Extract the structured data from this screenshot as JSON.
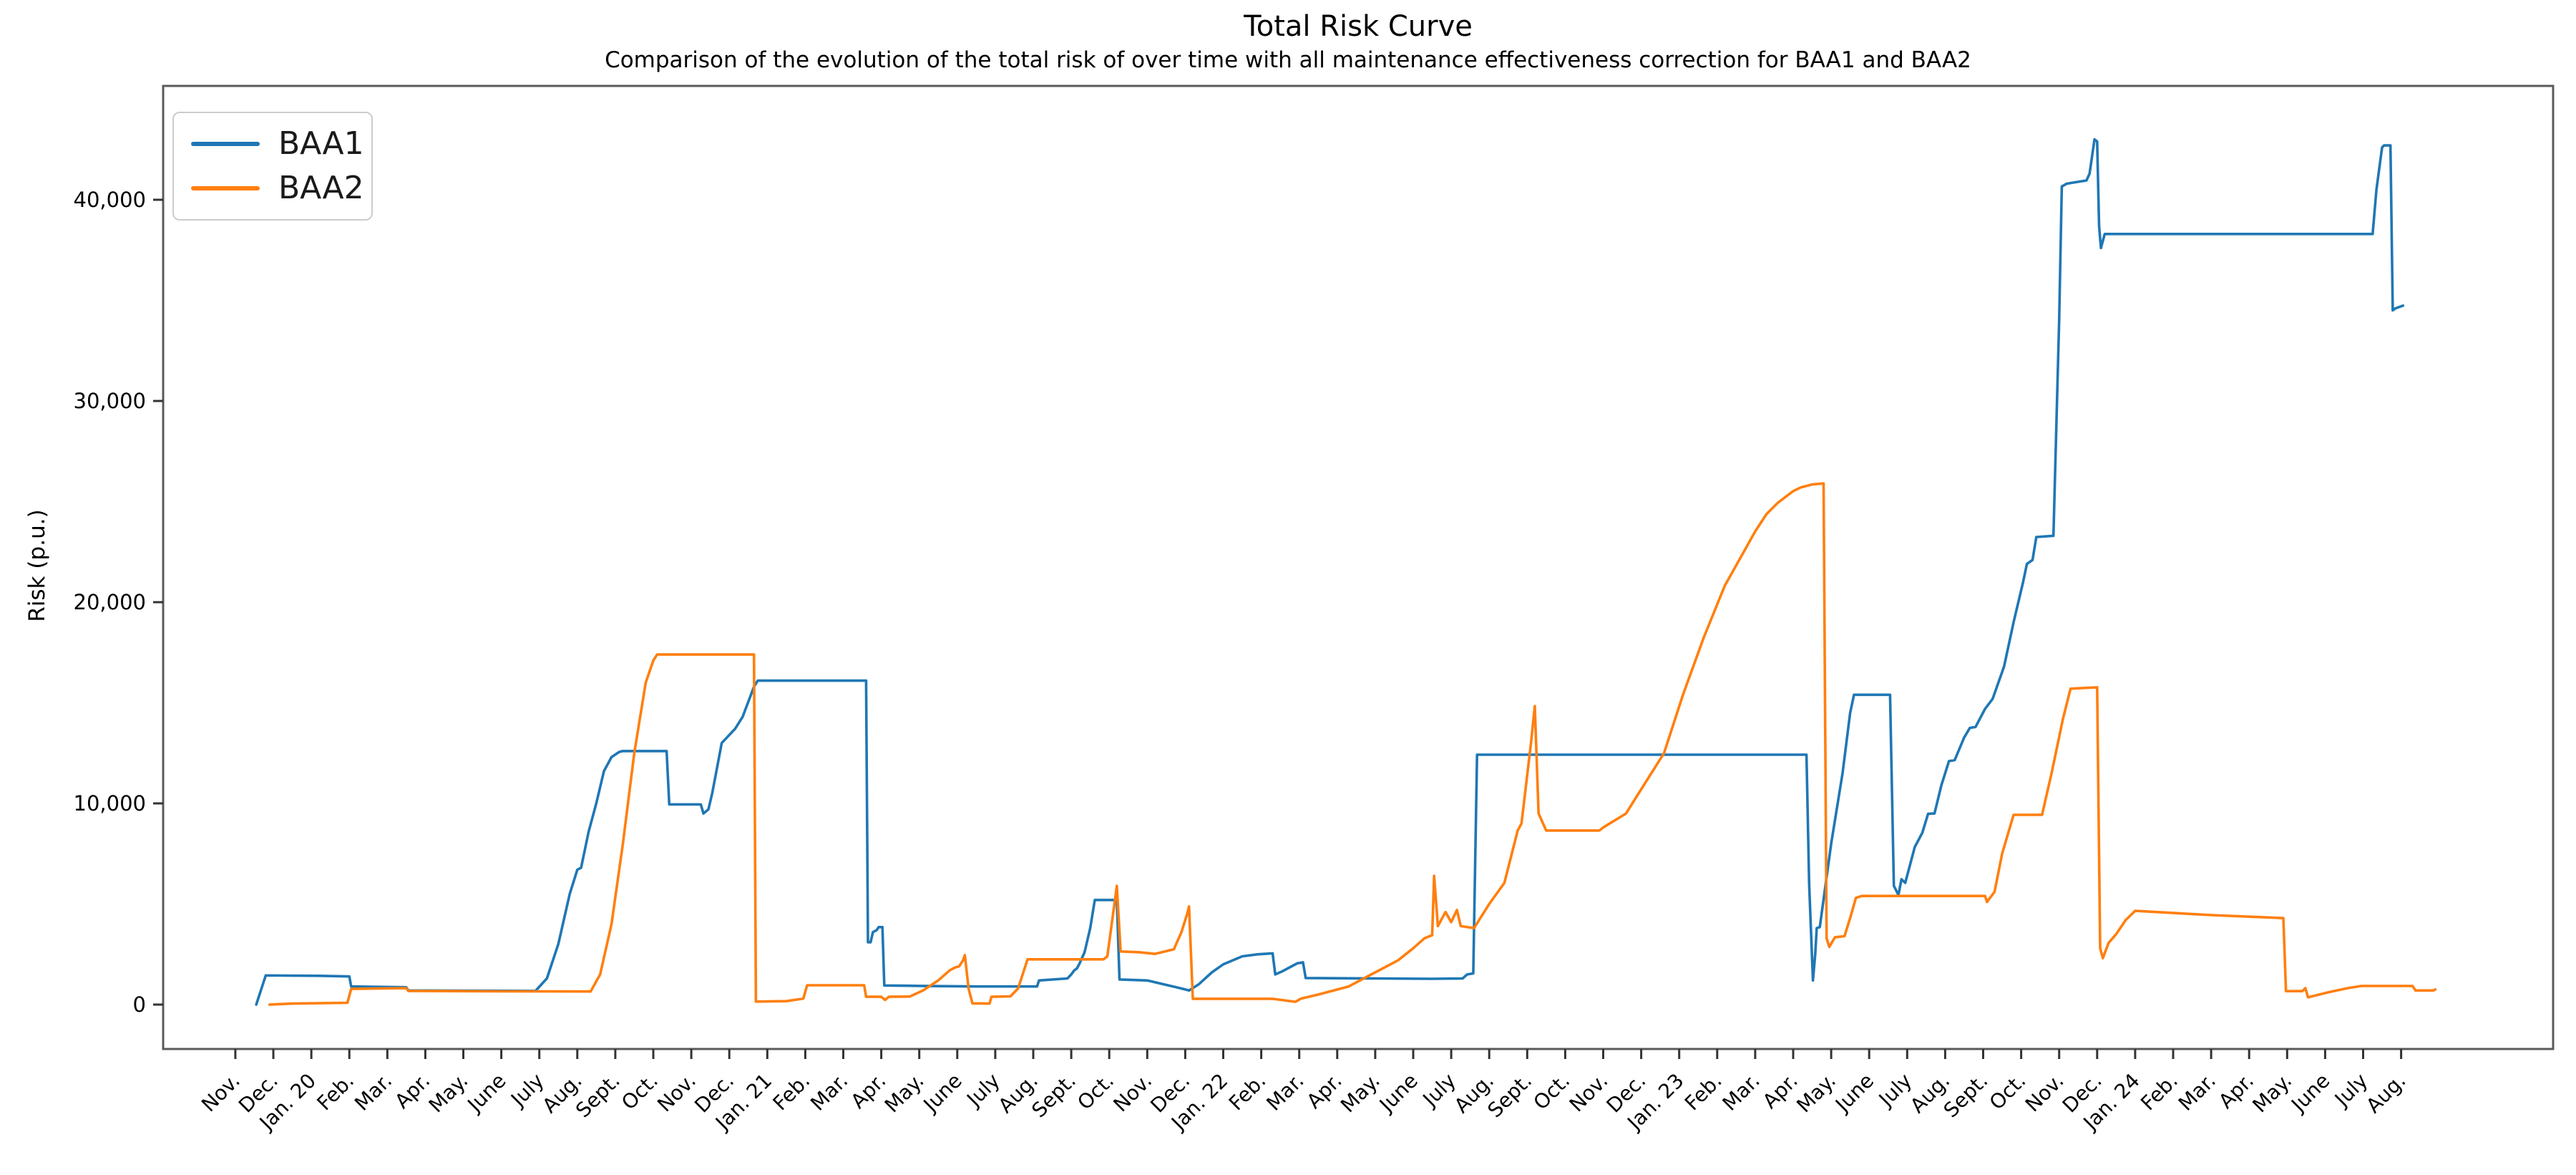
{
  "chart_data": {
    "type": "line",
    "title": "Total Risk Curve",
    "subtitle": "Comparison of the evolution of the total risk of over time with all maintenance effectiveness correction for BAA1 and BAA2",
    "xlabel": "",
    "ylabel": "Risk (p.u.)",
    "grid": false,
    "legend_position": "upper left",
    "background_color": "#ffffff",
    "spine_color": "#5a5a5a",
    "tick_color": "#333333",
    "y_ticks": [
      {
        "value": 0,
        "label": "0"
      },
      {
        "value": 10000,
        "label": "10,000"
      },
      {
        "value": 20000,
        "label": "20,000"
      },
      {
        "value": 30000,
        "label": "30,000"
      },
      {
        "value": 40000,
        "label": "40,000"
      }
    ],
    "x_tick_labels": [
      "Nov.",
      "Dec.",
      "Jan. 20",
      "Feb.",
      "Mar.",
      "Apr.",
      "May.",
      "June",
      "July",
      "Aug.",
      "Sept.",
      "Oct.",
      "Nov.",
      "Dec.",
      "Jan. 21",
      "Feb.",
      "Mar.",
      "Apr.",
      "May.",
      "June",
      "July",
      "Aug.",
      "Sept.",
      "Oct.",
      "Nov.",
      "Dec.",
      "Jan. 22",
      "Feb.",
      "Mar.",
      "Apr.",
      "May.",
      "June",
      "July",
      "Aug.",
      "Sept.",
      "Oct.",
      "Nov.",
      "Dec.",
      "Jan. 23",
      "Feb.",
      "Mar.",
      "Apr.",
      "May.",
      "June",
      "July",
      "Aug.",
      "Sept.",
      "Oct.",
      "Nov.",
      "Dec.",
      "Jan. 24",
      "Feb.",
      "Mar.",
      "Apr.",
      "May.",
      "June",
      "July",
      "Aug."
    ],
    "x_unit": "months since Nov. 2019 (tick index)",
    "x_range": [
      -1.9,
      61.0
    ],
    "y_range": [
      -2206,
      45658
    ],
    "series": [
      {
        "name": "BAA1",
        "color": "#1f77b4",
        "points": [
          [
            0.55,
            0
          ],
          [
            0.8,
            1450
          ],
          [
            2.2,
            1430
          ],
          [
            3.0,
            1400
          ],
          [
            3.05,
            900
          ],
          [
            4.5,
            860
          ],
          [
            4.55,
            700
          ],
          [
            7.9,
            680
          ],
          [
            8.2,
            1300
          ],
          [
            8.5,
            3000
          ],
          [
            8.8,
            5500
          ],
          [
            9.0,
            6700
          ],
          [
            9.1,
            6800
          ],
          [
            9.3,
            8600
          ],
          [
            9.5,
            10000
          ],
          [
            9.7,
            11600
          ],
          [
            9.9,
            12300
          ],
          [
            10.1,
            12550
          ],
          [
            10.2,
            12600
          ],
          [
            11.35,
            12600
          ],
          [
            11.42,
            9950
          ],
          [
            12.25,
            9950
          ],
          [
            12.32,
            9500
          ],
          [
            12.45,
            9700
          ],
          [
            12.55,
            10500
          ],
          [
            12.7,
            12000
          ],
          [
            12.8,
            13000
          ],
          [
            12.95,
            13300
          ],
          [
            13.15,
            13700
          ],
          [
            13.35,
            14300
          ],
          [
            13.55,
            15300
          ],
          [
            13.65,
            15800
          ],
          [
            13.75,
            16100
          ],
          [
            16.6,
            16100
          ],
          [
            16.65,
            3100
          ],
          [
            16.72,
            3100
          ],
          [
            16.78,
            3600
          ],
          [
            16.88,
            3700
          ],
          [
            16.93,
            3850
          ],
          [
            17.03,
            3850
          ],
          [
            17.08,
            950
          ],
          [
            18.0,
            930
          ],
          [
            19.5,
            900
          ],
          [
            21.1,
            900
          ],
          [
            21.15,
            1200
          ],
          [
            21.9,
            1300
          ],
          [
            22.0,
            1500
          ],
          [
            22.08,
            1700
          ],
          [
            22.15,
            1800
          ],
          [
            22.22,
            2050
          ],
          [
            22.35,
            2600
          ],
          [
            22.5,
            3800
          ],
          [
            22.62,
            5200
          ],
          [
            23.2,
            5200
          ],
          [
            23.27,
            1250
          ],
          [
            24.0,
            1200
          ],
          [
            24.9,
            800
          ],
          [
            25.1,
            700
          ],
          [
            25.35,
            1000
          ],
          [
            25.7,
            1600
          ],
          [
            26.0,
            2000
          ],
          [
            26.5,
            2400
          ],
          [
            26.9,
            2500
          ],
          [
            27.3,
            2550
          ],
          [
            27.37,
            1500
          ],
          [
            27.55,
            1650
          ],
          [
            27.75,
            1850
          ],
          [
            27.95,
            2050
          ],
          [
            28.1,
            2100
          ],
          [
            28.17,
            1320
          ],
          [
            30.0,
            1300
          ],
          [
            31.5,
            1280
          ],
          [
            32.3,
            1300
          ],
          [
            32.42,
            1500
          ],
          [
            32.58,
            1550
          ],
          [
            32.68,
            12420
          ],
          [
            41.35,
            12420
          ],
          [
            41.42,
            6000
          ],
          [
            41.52,
            1200
          ],
          [
            41.58,
            2500
          ],
          [
            41.62,
            3800
          ],
          [
            41.7,
            3850
          ],
          [
            42.0,
            8000
          ],
          [
            42.3,
            11500
          ],
          [
            42.5,
            14500
          ],
          [
            42.6,
            15400
          ],
          [
            43.55,
            15400
          ],
          [
            43.65,
            5900
          ],
          [
            43.77,
            5450
          ],
          [
            43.85,
            6230
          ],
          [
            43.95,
            6050
          ],
          [
            44.2,
            7830
          ],
          [
            44.4,
            8540
          ],
          [
            44.55,
            9480
          ],
          [
            44.72,
            9500
          ],
          [
            44.9,
            10900
          ],
          [
            45.1,
            12100
          ],
          [
            45.25,
            12150
          ],
          [
            45.5,
            13270
          ],
          [
            45.65,
            13750
          ],
          [
            45.8,
            13800
          ],
          [
            46.05,
            14700
          ],
          [
            46.25,
            15200
          ],
          [
            46.55,
            16800
          ],
          [
            46.8,
            19000
          ],
          [
            47.05,
            21000
          ],
          [
            47.15,
            21900
          ],
          [
            47.3,
            22100
          ],
          [
            47.4,
            23240
          ],
          [
            47.85,
            23300
          ],
          [
            48.0,
            34000
          ],
          [
            48.07,
            40660
          ],
          [
            48.2,
            40800
          ],
          [
            48.72,
            40960
          ],
          [
            48.8,
            41300
          ],
          [
            48.93,
            43000
          ],
          [
            49.0,
            42900
          ],
          [
            49.05,
            38700
          ],
          [
            49.1,
            37600
          ],
          [
            49.2,
            38300
          ],
          [
            56.25,
            38300
          ],
          [
            56.35,
            40500
          ],
          [
            56.5,
            42600
          ],
          [
            56.55,
            42700
          ],
          [
            56.72,
            42700
          ],
          [
            56.78,
            34500
          ],
          [
            56.85,
            34600
          ],
          [
            57.05,
            34740
          ]
        ]
      },
      {
        "name": "BAA2",
        "color": "#ff7f0e",
        "points": [
          [
            0.9,
            0
          ],
          [
            1.5,
            50
          ],
          [
            2.95,
            90
          ],
          [
            3.05,
            780
          ],
          [
            4.5,
            820
          ],
          [
            4.55,
            680
          ],
          [
            7.0,
            660
          ],
          [
            9.35,
            650
          ],
          [
            9.6,
            1500
          ],
          [
            9.9,
            4000
          ],
          [
            10.2,
            8000
          ],
          [
            10.5,
            12500
          ],
          [
            10.8,
            16000
          ],
          [
            11.0,
            17100
          ],
          [
            11.1,
            17400
          ],
          [
            13.65,
            17400
          ],
          [
            13.7,
            150
          ],
          [
            14.5,
            170
          ],
          [
            14.95,
            300
          ],
          [
            15.05,
            960
          ],
          [
            16.55,
            960
          ],
          [
            16.6,
            390
          ],
          [
            17.0,
            390
          ],
          [
            17.1,
            230
          ],
          [
            17.2,
            390
          ],
          [
            17.75,
            400
          ],
          [
            18.1,
            700
          ],
          [
            18.5,
            1200
          ],
          [
            18.8,
            1700
          ],
          [
            18.95,
            1850
          ],
          [
            19.05,
            1900
          ],
          [
            19.15,
            2200
          ],
          [
            19.2,
            2460
          ],
          [
            19.3,
            780
          ],
          [
            19.4,
            60
          ],
          [
            19.85,
            50
          ],
          [
            19.9,
            390
          ],
          [
            20.4,
            410
          ],
          [
            20.6,
            800
          ],
          [
            20.85,
            2250
          ],
          [
            22.85,
            2250
          ],
          [
            22.95,
            2400
          ],
          [
            23.1,
            4500
          ],
          [
            23.2,
            5900
          ],
          [
            23.3,
            2640
          ],
          [
            23.8,
            2600
          ],
          [
            24.2,
            2520
          ],
          [
            24.7,
            2750
          ],
          [
            24.9,
            3600
          ],
          [
            25.05,
            4500
          ],
          [
            25.1,
            4880
          ],
          [
            25.2,
            290
          ],
          [
            27.3,
            290
          ],
          [
            27.9,
            140
          ],
          [
            28.05,
            300
          ],
          [
            28.5,
            500
          ],
          [
            29.3,
            900
          ],
          [
            30.0,
            1600
          ],
          [
            30.6,
            2200
          ],
          [
            31.0,
            2800
          ],
          [
            31.3,
            3300
          ],
          [
            31.5,
            3450
          ],
          [
            31.55,
            6400
          ],
          [
            31.65,
            3900
          ],
          [
            31.85,
            4600
          ],
          [
            32.0,
            4100
          ],
          [
            32.15,
            4700
          ],
          [
            32.25,
            3900
          ],
          [
            32.6,
            3800
          ],
          [
            33.0,
            5000
          ],
          [
            33.4,
            6050
          ],
          [
            33.75,
            8650
          ],
          [
            33.85,
            9000
          ],
          [
            34.1,
            13000
          ],
          [
            34.2,
            14840
          ],
          [
            34.3,
            9500
          ],
          [
            34.5,
            8650
          ],
          [
            35.9,
            8650
          ],
          [
            36.0,
            8800
          ],
          [
            36.6,
            9500
          ],
          [
            37.0,
            10700
          ],
          [
            37.6,
            12500
          ],
          [
            38.1,
            15400
          ],
          [
            38.65,
            18260
          ],
          [
            39.2,
            20820
          ],
          [
            39.75,
            22670
          ],
          [
            40.0,
            23520
          ],
          [
            40.3,
            24380
          ],
          [
            40.6,
            24950
          ],
          [
            41.0,
            25520
          ],
          [
            41.2,
            25700
          ],
          [
            41.5,
            25850
          ],
          [
            41.8,
            25900
          ],
          [
            41.88,
            3300
          ],
          [
            41.95,
            2870
          ],
          [
            42.1,
            3350
          ],
          [
            42.35,
            3400
          ],
          [
            42.5,
            4300
          ],
          [
            42.65,
            5300
          ],
          [
            42.8,
            5400
          ],
          [
            46.05,
            5400
          ],
          [
            46.1,
            5100
          ],
          [
            46.3,
            5600
          ],
          [
            46.5,
            7500
          ],
          [
            46.8,
            9430
          ],
          [
            47.55,
            9430
          ],
          [
            47.8,
            11500
          ],
          [
            48.1,
            14200
          ],
          [
            48.3,
            15700
          ],
          [
            49.0,
            15770
          ],
          [
            49.08,
            2800
          ],
          [
            49.15,
            2310
          ],
          [
            49.3,
            3060
          ],
          [
            49.5,
            3500
          ],
          [
            49.75,
            4200
          ],
          [
            50.0,
            4660
          ],
          [
            52.0,
            4450
          ],
          [
            53.9,
            4300
          ],
          [
            53.97,
            670
          ],
          [
            54.4,
            670
          ],
          [
            54.48,
            820
          ],
          [
            54.55,
            360
          ],
          [
            55.1,
            620
          ],
          [
            55.6,
            820
          ],
          [
            55.95,
            925
          ],
          [
            57.3,
            925
          ],
          [
            57.38,
            700
          ],
          [
            57.85,
            700
          ],
          [
            57.9,
            750
          ]
        ]
      }
    ]
  }
}
